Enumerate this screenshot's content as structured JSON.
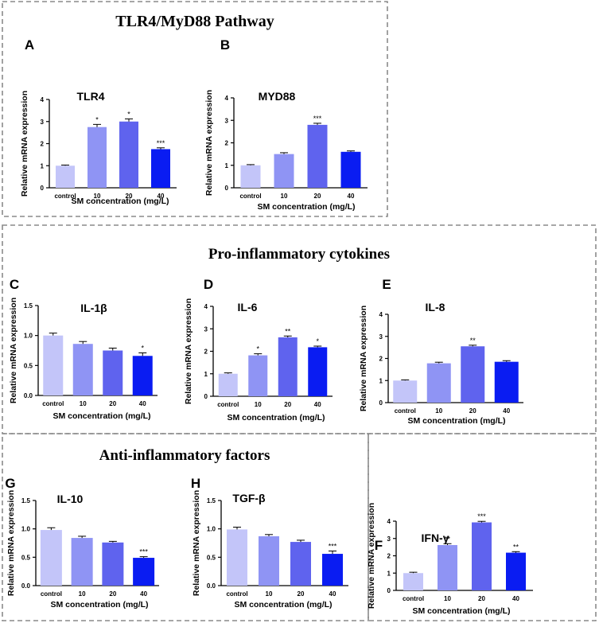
{
  "sections": [
    {
      "id": "tlr4",
      "title": "TLR4/MyD88 Pathway"
    },
    {
      "id": "pro",
      "title": "Pro-inflammatory cytokines"
    },
    {
      "id": "anti",
      "title": "Anti-inflammatory factors"
    }
  ],
  "colors": [
    "#c3c5f9",
    "#8f94f4",
    "#5f63ee",
    "#0a1cf2"
  ],
  "chart_data": [
    {
      "panel": "A",
      "type": "bar",
      "title": "TLR4",
      "categories": [
        "control",
        "10",
        "20",
        "40"
      ],
      "values": [
        1.0,
        2.75,
        3.0,
        1.75
      ],
      "errors": [
        0.03,
        0.12,
        0.12,
        0.06
      ],
      "sig": [
        "",
        "*",
        "*",
        "***"
      ],
      "xlabel": "SM concentration (mg/L)",
      "ylabel": "Relative mRNA expression",
      "ylim": [
        0,
        4
      ],
      "yticks": [
        "0",
        "1",
        "2",
        "3",
        "4"
      ]
    },
    {
      "panel": "B",
      "type": "bar",
      "title": "MYD88",
      "categories": [
        "control",
        "10",
        "20",
        "40"
      ],
      "values": [
        1.0,
        1.5,
        2.8,
        1.6
      ],
      "errors": [
        0.03,
        0.06,
        0.07,
        0.04
      ],
      "sig": [
        "",
        "",
        "***",
        ""
      ],
      "xlabel": "SM concentration (mg/L)",
      "ylabel": "Relative mRNA expression",
      "ylim": [
        0,
        4
      ],
      "yticks": [
        "0",
        "1",
        "2",
        "3",
        "4"
      ]
    },
    {
      "panel": "C",
      "type": "bar",
      "title": "IL-1β",
      "categories": [
        "control",
        "10",
        "20",
        "40"
      ],
      "values": [
        1.0,
        0.86,
        0.75,
        0.66
      ],
      "errors": [
        0.04,
        0.04,
        0.04,
        0.05
      ],
      "sig": [
        "",
        "",
        "",
        "*"
      ],
      "xlabel": "SM concentration (mg/L)",
      "ylabel": "Relative mRNA expression",
      "ylim": [
        0,
        1.5
      ],
      "yticks": [
        "0.0",
        "0.5",
        "1.0",
        "1.5"
      ]
    },
    {
      "panel": "D",
      "type": "bar",
      "title": "IL-6",
      "categories": [
        "control",
        "10",
        "20",
        "40"
      ],
      "values": [
        1.0,
        1.82,
        2.62,
        2.18
      ],
      "errors": [
        0.04,
        0.07,
        0.06,
        0.05
      ],
      "sig": [
        "",
        "*",
        "**",
        "*"
      ],
      "xlabel": "SM concentration (mg/L)",
      "ylabel": "Relative mRNA expression",
      "ylim": [
        0,
        4
      ],
      "yticks": [
        "0",
        "1",
        "2",
        "3",
        "4"
      ]
    },
    {
      "panel": "E",
      "type": "bar",
      "title": "IL-8",
      "categories": [
        "control",
        "10",
        "20",
        "40"
      ],
      "values": [
        1.0,
        1.78,
        2.55,
        1.85
      ],
      "errors": [
        0.03,
        0.05,
        0.05,
        0.05
      ],
      "sig": [
        "",
        "",
        "**",
        ""
      ],
      "xlabel": "SM concentration (mg/L)",
      "ylabel": "Relative mRNA expression",
      "ylim": [
        0,
        4
      ],
      "yticks": [
        "0",
        "1",
        "2",
        "3",
        "4"
      ]
    },
    {
      "panel": "F",
      "type": "bar",
      "title": "IFN-γ",
      "categories": [
        "control",
        "10",
        "20",
        "40"
      ],
      "values": [
        1.0,
        2.62,
        3.93,
        2.18
      ],
      "errors": [
        0.05,
        0.08,
        0.06,
        0.06
      ],
      "sig": [
        "",
        "**",
        "***",
        "**"
      ],
      "xlabel": "SM concentration (mg/L)",
      "ylabel": "Relative mRNA expression",
      "ylim": [
        0,
        4
      ],
      "yticks": [
        "0",
        "1",
        "2",
        "3",
        "4"
      ]
    },
    {
      "panel": "G",
      "type": "bar",
      "title": "IL-10",
      "categories": [
        "control",
        "10",
        "20",
        "40"
      ],
      "values": [
        0.98,
        0.84,
        0.76,
        0.49
      ],
      "errors": [
        0.04,
        0.03,
        0.02,
        0.02
      ],
      "sig": [
        "",
        "",
        "",
        "***"
      ],
      "xlabel": "SM concentration (mg/L)",
      "ylabel": "Relative mRNA expression",
      "ylim": [
        0,
        1.5
      ],
      "yticks": [
        "0.0",
        "0.5",
        "1.0",
        "1.5"
      ]
    },
    {
      "panel": "H",
      "type": "bar",
      "title": "TGF-β",
      "categories": [
        "control",
        "10",
        "20",
        "40"
      ],
      "values": [
        0.99,
        0.87,
        0.77,
        0.56
      ],
      "errors": [
        0.04,
        0.03,
        0.03,
        0.05
      ],
      "sig": [
        "",
        "",
        "",
        "***"
      ],
      "xlabel": "SM concentration (mg/L)",
      "ylabel": "Relative mRNA expression",
      "ylim": [
        0,
        1.5
      ],
      "yticks": [
        "0.0",
        "0.5",
        "1.0",
        "1.5"
      ]
    }
  ]
}
